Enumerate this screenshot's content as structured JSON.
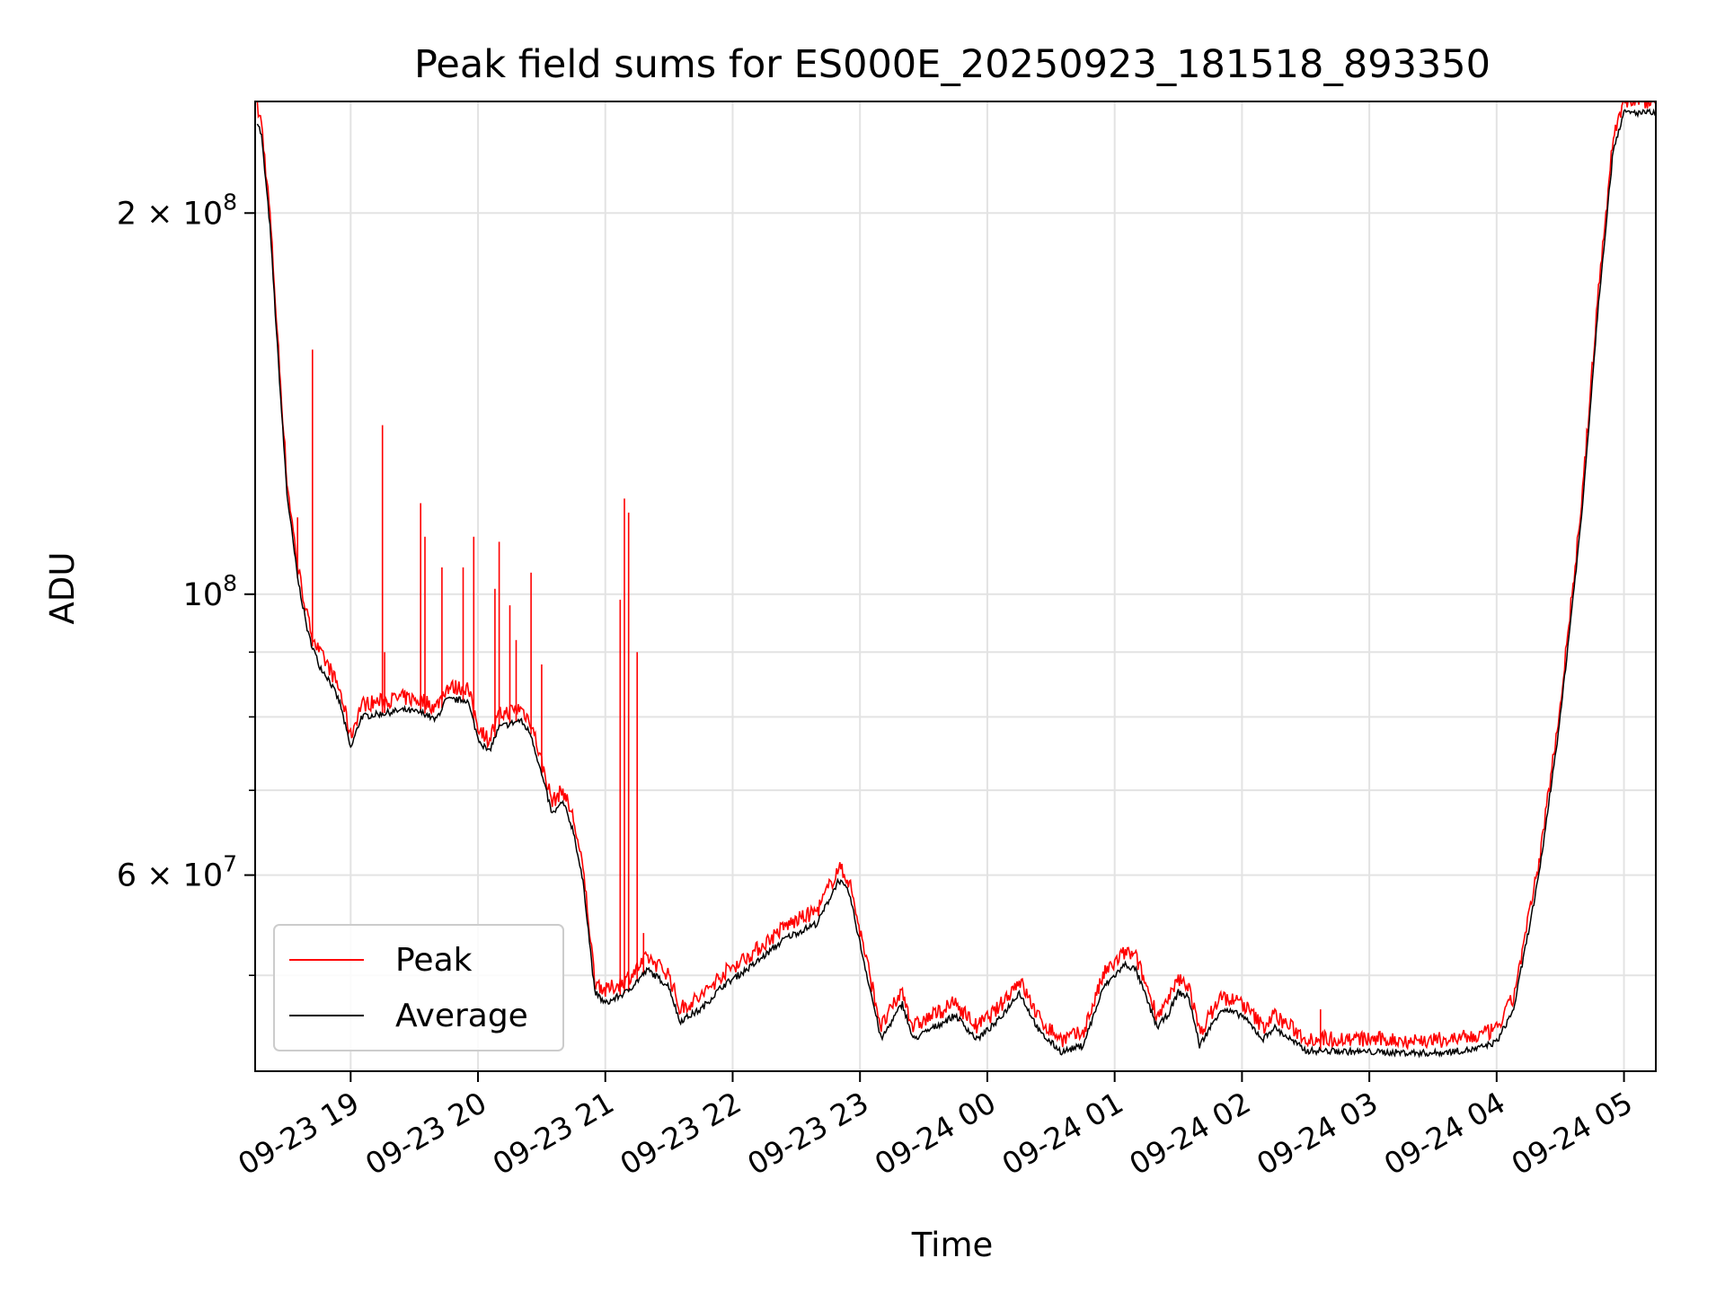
{
  "chart_data": {
    "type": "line",
    "title": "Peak field sums for ES000E_20250923_181518_893350",
    "xlabel": "Time",
    "ylabel": "ADU",
    "yscale": "log",
    "ylim": [
      42000000,
      245000000
    ],
    "xlim": [
      "2025-09-23 18:15",
      "2025-09-24 05:15"
    ],
    "grid": true,
    "legend_position": "lower-left",
    "x_ticks": [
      {
        "t": "2025-09-23 19:00",
        "label": "09-23 19"
      },
      {
        "t": "2025-09-23 20:00",
        "label": "09-23 20"
      },
      {
        "t": "2025-09-23 21:00",
        "label": "09-23 21"
      },
      {
        "t": "2025-09-23 22:00",
        "label": "09-23 22"
      },
      {
        "t": "2025-09-23 23:00",
        "label": "09-23 23"
      },
      {
        "t": "2025-09-24 00:00",
        "label": "09-24 00"
      },
      {
        "t": "2025-09-24 01:00",
        "label": "09-24 01"
      },
      {
        "t": "2025-09-24 02:00",
        "label": "09-24 02"
      },
      {
        "t": "2025-09-24 03:00",
        "label": "09-24 03"
      },
      {
        "t": "2025-09-24 04:00",
        "label": "09-24 04"
      },
      {
        "t": "2025-09-24 05:00",
        "label": "09-24 05"
      }
    ],
    "y_major_ticks": [
      {
        "value": 60000000,
        "mant": "6",
        "exp": "7"
      },
      {
        "value": 100000000,
        "mant": "",
        "exp": "8"
      },
      {
        "value": 200000000,
        "mant": "2",
        "exp": "8"
      }
    ],
    "y_minor_ticks": [
      50000000,
      70000000,
      80000000,
      90000000
    ],
    "series": [
      {
        "name": "Average",
        "color": "#000000",
        "points": [
          [
            "2025-09-23 18:15",
            240000000
          ],
          [
            "2025-09-23 18:18",
            230000000
          ],
          [
            "2025-09-23 18:22",
            195000000
          ],
          [
            "2025-09-23 18:26",
            152000000
          ],
          [
            "2025-09-23 18:30",
            120000000
          ],
          [
            "2025-09-23 18:35",
            103000000
          ],
          [
            "2025-09-23 18:40",
            93000000
          ],
          [
            "2025-09-23 18:45",
            88000000
          ],
          [
            "2025-09-23 18:50",
            85500000
          ],
          [
            "2025-09-23 18:55",
            82000000
          ],
          [
            "2025-09-23 19:00",
            75500000
          ],
          [
            "2025-09-23 19:05",
            80000000
          ],
          [
            "2025-09-23 19:15",
            80500000
          ],
          [
            "2025-09-23 19:25",
            81000000
          ],
          [
            "2025-09-23 19:35",
            80500000
          ],
          [
            "2025-09-23 19:40",
            79500000
          ],
          [
            "2025-09-23 19:45",
            82500000
          ],
          [
            "2025-09-23 19:55",
            82500000
          ],
          [
            "2025-09-23 20:00",
            77000000
          ],
          [
            "2025-09-23 20:05",
            75000000
          ],
          [
            "2025-09-23 20:10",
            78500000
          ],
          [
            "2025-09-23 20:20",
            79500000
          ],
          [
            "2025-09-23 20:25",
            77500000
          ],
          [
            "2025-09-23 20:30",
            72000000
          ],
          [
            "2025-09-23 20:35",
            67000000
          ],
          [
            "2025-09-23 20:40",
            68500000
          ],
          [
            "2025-09-23 20:45",
            65000000
          ],
          [
            "2025-09-23 20:50",
            58500000
          ],
          [
            "2025-09-23 20:55",
            48500000
          ],
          [
            "2025-09-23 21:00",
            47500000
          ],
          [
            "2025-09-23 21:10",
            48500000
          ],
          [
            "2025-09-23 21:20",
            50500000
          ],
          [
            "2025-09-23 21:30",
            49000000
          ],
          [
            "2025-09-23 21:35",
            46000000
          ],
          [
            "2025-09-23 21:45",
            47000000
          ],
          [
            "2025-09-23 21:55",
            49000000
          ],
          [
            "2025-09-23 22:10",
            51000000
          ],
          [
            "2025-09-23 22:25",
            53500000
          ],
          [
            "2025-09-23 22:40",
            55000000
          ],
          [
            "2025-09-23 22:50",
            59500000
          ],
          [
            "2025-09-23 22:55",
            58000000
          ],
          [
            "2025-09-23 23:00",
            53000000
          ],
          [
            "2025-09-23 23:10",
            44500000
          ],
          [
            "2025-09-23 23:15",
            46000000
          ],
          [
            "2025-09-23 23:20",
            47500000
          ],
          [
            "2025-09-23 23:25",
            44500000
          ],
          [
            "2025-09-23 23:35",
            45500000
          ],
          [
            "2025-09-23 23:45",
            46500000
          ],
          [
            "2025-09-23 23:55",
            44500000
          ],
          [
            "2025-09-24 00:05",
            46000000
          ],
          [
            "2025-09-24 00:15",
            48500000
          ],
          [
            "2025-09-24 00:25",
            45000000
          ],
          [
            "2025-09-24 00:35",
            43500000
          ],
          [
            "2025-09-24 00:45",
            44000000
          ],
          [
            "2025-09-24 00:55",
            49000000
          ],
          [
            "2025-09-24 01:05",
            51000000
          ],
          [
            "2025-09-24 01:10",
            50500000
          ],
          [
            "2025-09-24 01:20",
            45500000
          ],
          [
            "2025-09-24 01:25",
            46500000
          ],
          [
            "2025-09-24 01:30",
            48500000
          ],
          [
            "2025-09-24 01:35",
            48000000
          ],
          [
            "2025-09-24 01:40",
            44000000
          ],
          [
            "2025-09-24 01:50",
            47000000
          ],
          [
            "2025-09-24 02:00",
            46500000
          ],
          [
            "2025-09-24 02:10",
            44500000
          ],
          [
            "2025-09-24 02:15",
            45500000
          ],
          [
            "2025-09-24 02:30",
            43600000
          ],
          [
            "2025-09-24 03:00",
            43500000
          ],
          [
            "2025-09-24 03:30",
            43400000
          ],
          [
            "2025-09-24 03:50",
            43700000
          ],
          [
            "2025-09-24 04:00",
            44300000
          ],
          [
            "2025-09-24 04:08",
            47000000
          ],
          [
            "2025-09-24 04:20",
            60000000
          ],
          [
            "2025-09-24 04:30",
            80000000
          ],
          [
            "2025-09-24 04:40",
            115000000
          ],
          [
            "2025-09-24 04:48",
            170000000
          ],
          [
            "2025-09-24 04:55",
            225000000
          ],
          [
            "2025-09-24 05:00",
            240000000
          ],
          [
            "2025-09-24 05:15",
            240000000
          ]
        ]
      },
      {
        "name": "Peak",
        "color": "#ff0000",
        "spikes": [
          [
            "2025-09-23 18:42",
            156000000
          ],
          [
            "2025-09-23 18:35",
            115000000
          ],
          [
            "2025-09-23 19:15",
            136000000
          ],
          [
            "2025-09-23 19:16",
            90000000
          ],
          [
            "2025-09-23 19:33",
            118000000
          ],
          [
            "2025-09-23 19:35",
            111000000
          ],
          [
            "2025-09-23 19:43",
            105000000
          ],
          [
            "2025-09-23 19:53",
            105000000
          ],
          [
            "2025-09-23 19:58",
            111000000
          ],
          [
            "2025-09-23 20:08",
            101000000
          ],
          [
            "2025-09-23 20:10",
            110000000
          ],
          [
            "2025-09-23 20:15",
            98000000
          ],
          [
            "2025-09-23 20:18",
            92000000
          ],
          [
            "2025-09-23 20:25",
            104000000
          ],
          [
            "2025-09-23 20:30",
            88000000
          ],
          [
            "2025-09-23 21:07",
            99000000
          ],
          [
            "2025-09-23 21:09",
            119000000
          ],
          [
            "2025-09-23 21:11",
            116000000
          ],
          [
            "2025-09-23 21:15",
            90000000
          ],
          [
            "2025-09-23 21:18",
            54000000
          ],
          [
            "2025-09-23 23:47",
            46000000
          ],
          [
            "2025-09-24 02:37",
            47000000
          ]
        ]
      }
    ]
  }
}
